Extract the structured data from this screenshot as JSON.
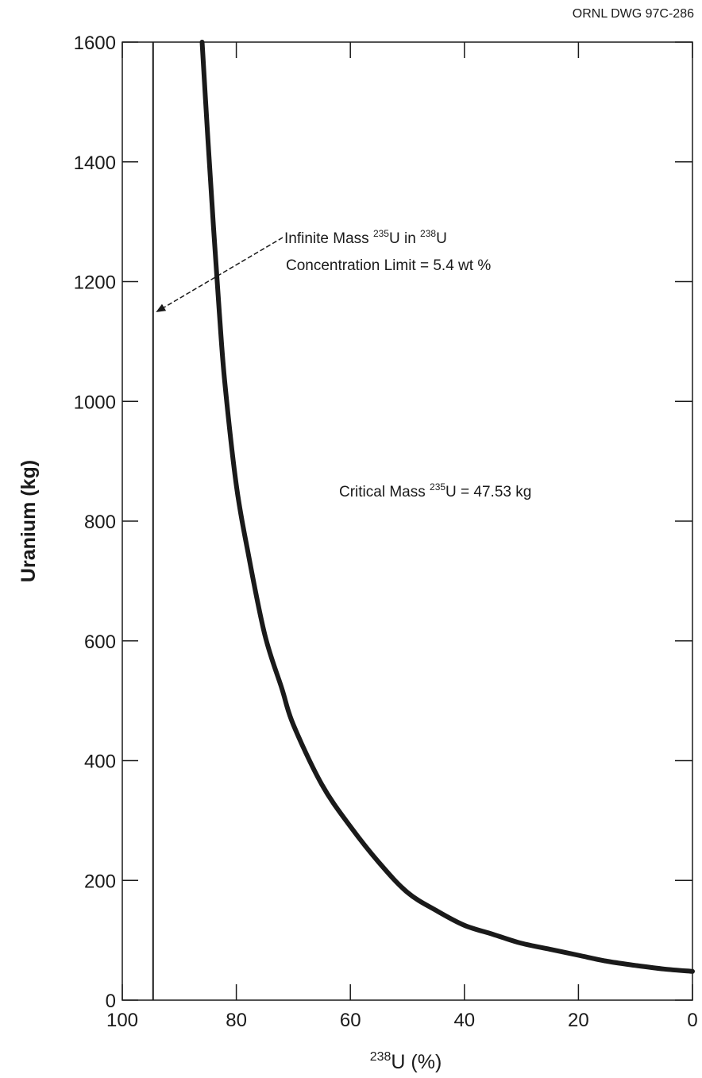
{
  "drawing_id": "ORNL DWG 97C-286",
  "colors": {
    "ink": "#1a1a1a",
    "background": "#ffffff"
  },
  "chart_data": {
    "type": "line",
    "xlabel": {
      "sup": "238",
      "main": "U (%)"
    },
    "ylabel": "Uranium (kg)",
    "xlim": [
      100,
      0
    ],
    "ylim": [
      0,
      1600
    ],
    "x_reversed": true,
    "grid": false,
    "x_ticks": [
      100,
      80,
      60,
      40,
      20,
      0
    ],
    "y_ticks": [
      0,
      200,
      400,
      600,
      800,
      1000,
      1200,
      1400,
      1600
    ],
    "series": [
      {
        "curve": "critical-mass",
        "x": [
          86,
          85,
          84,
          83,
          82,
          80,
          78,
          75,
          72,
          70,
          65,
          60,
          55,
          50,
          45,
          40,
          35,
          30,
          25,
          20,
          15,
          10,
          5,
          0
        ],
        "y": [
          1600,
          1440,
          1290,
          1150,
          1030,
          860,
          750,
          610,
          520,
          460,
          360,
          290,
          230,
          180,
          150,
          125,
          110,
          95,
          85,
          75,
          65,
          58,
          52,
          48
        ]
      },
      {
        "curve": "concentration-limit",
        "x": [
          94.6,
          94.6
        ],
        "y": [
          0,
          1600
        ]
      }
    ],
    "annotations": {
      "infinite_mass": {
        "line1_a": "Infinite Mass ",
        "line1_sup1": "235",
        "line1_b": "U in ",
        "line1_sup2": "238",
        "line1_c": "U",
        "line2": "Concentration Limit = 5.4 wt %"
      },
      "critical_mass": {
        "a": "Critical Mass ",
        "sup": "235",
        "b": "U = 47.53 kg"
      }
    }
  }
}
